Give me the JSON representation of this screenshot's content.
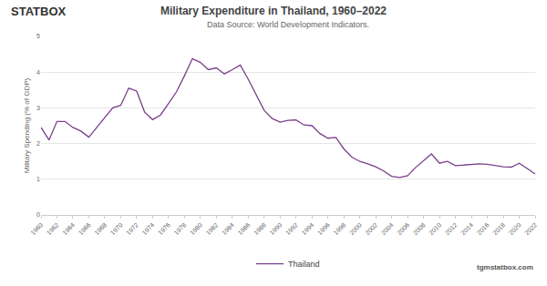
{
  "chart_data": {
    "type": "line",
    "title": "Military Expenditure in Thailand, 1960–2022",
    "subtitle": "Data Source: World Development Indicators.",
    "logo": "STATBOX",
    "footer": "tgmstatbox.com",
    "y_label": "Military Spending (% of GDP)",
    "x": [
      1960,
      1961,
      1962,
      1963,
      1964,
      1965,
      1966,
      1967,
      1968,
      1969,
      1970,
      1971,
      1972,
      1973,
      1974,
      1975,
      1976,
      1977,
      1978,
      1979,
      1980,
      1981,
      1982,
      1983,
      1984,
      1985,
      1986,
      1987,
      1988,
      1989,
      1990,
      1991,
      1992,
      1993,
      1994,
      1995,
      1996,
      1997,
      1998,
      1999,
      2000,
      2001,
      2002,
      2003,
      2004,
      2005,
      2006,
      2007,
      2008,
      2009,
      2010,
      2011,
      2012,
      2013,
      2014,
      2015,
      2016,
      2017,
      2018,
      2019,
      2020,
      2021,
      2022
    ],
    "series": [
      {
        "name": "Thailand",
        "color": "#7b3f8c",
        "values": [
          2.45,
          2.1,
          2.62,
          2.62,
          2.45,
          2.35,
          2.18,
          2.45,
          2.75,
          3.0,
          3.07,
          3.55,
          3.47,
          2.88,
          2.67,
          2.8,
          3.12,
          3.45,
          3.9,
          4.38,
          4.27,
          4.07,
          4.12,
          3.95,
          4.07,
          4.2,
          3.8,
          3.35,
          2.93,
          2.7,
          2.6,
          2.65,
          2.66,
          2.52,
          2.5,
          2.28,
          2.15,
          2.17,
          1.85,
          1.62,
          1.5,
          1.43,
          1.35,
          1.23,
          1.08,
          1.05,
          1.1,
          1.33,
          1.52,
          1.71,
          1.45,
          1.5,
          1.38,
          1.4,
          1.41,
          1.43,
          1.42,
          1.38,
          1.35,
          1.34,
          1.45,
          1.3,
          1.15
        ]
      }
    ],
    "xlim": [
      1960,
      2022
    ],
    "xticks": [
      1960,
      1962,
      1964,
      1966,
      1968,
      1970,
      1972,
      1974,
      1976,
      1978,
      1980,
      1982,
      1984,
      1986,
      1988,
      1990,
      1992,
      1994,
      1996,
      1998,
      2000,
      2002,
      2004,
      2006,
      2008,
      2010,
      2012,
      2014,
      2016,
      2018,
      2020,
      2022
    ],
    "ylim": [
      0,
      5
    ],
    "yticks": [
      0,
      1,
      2,
      3,
      4,
      5
    ],
    "grid": true,
    "legend": "bottom"
  }
}
